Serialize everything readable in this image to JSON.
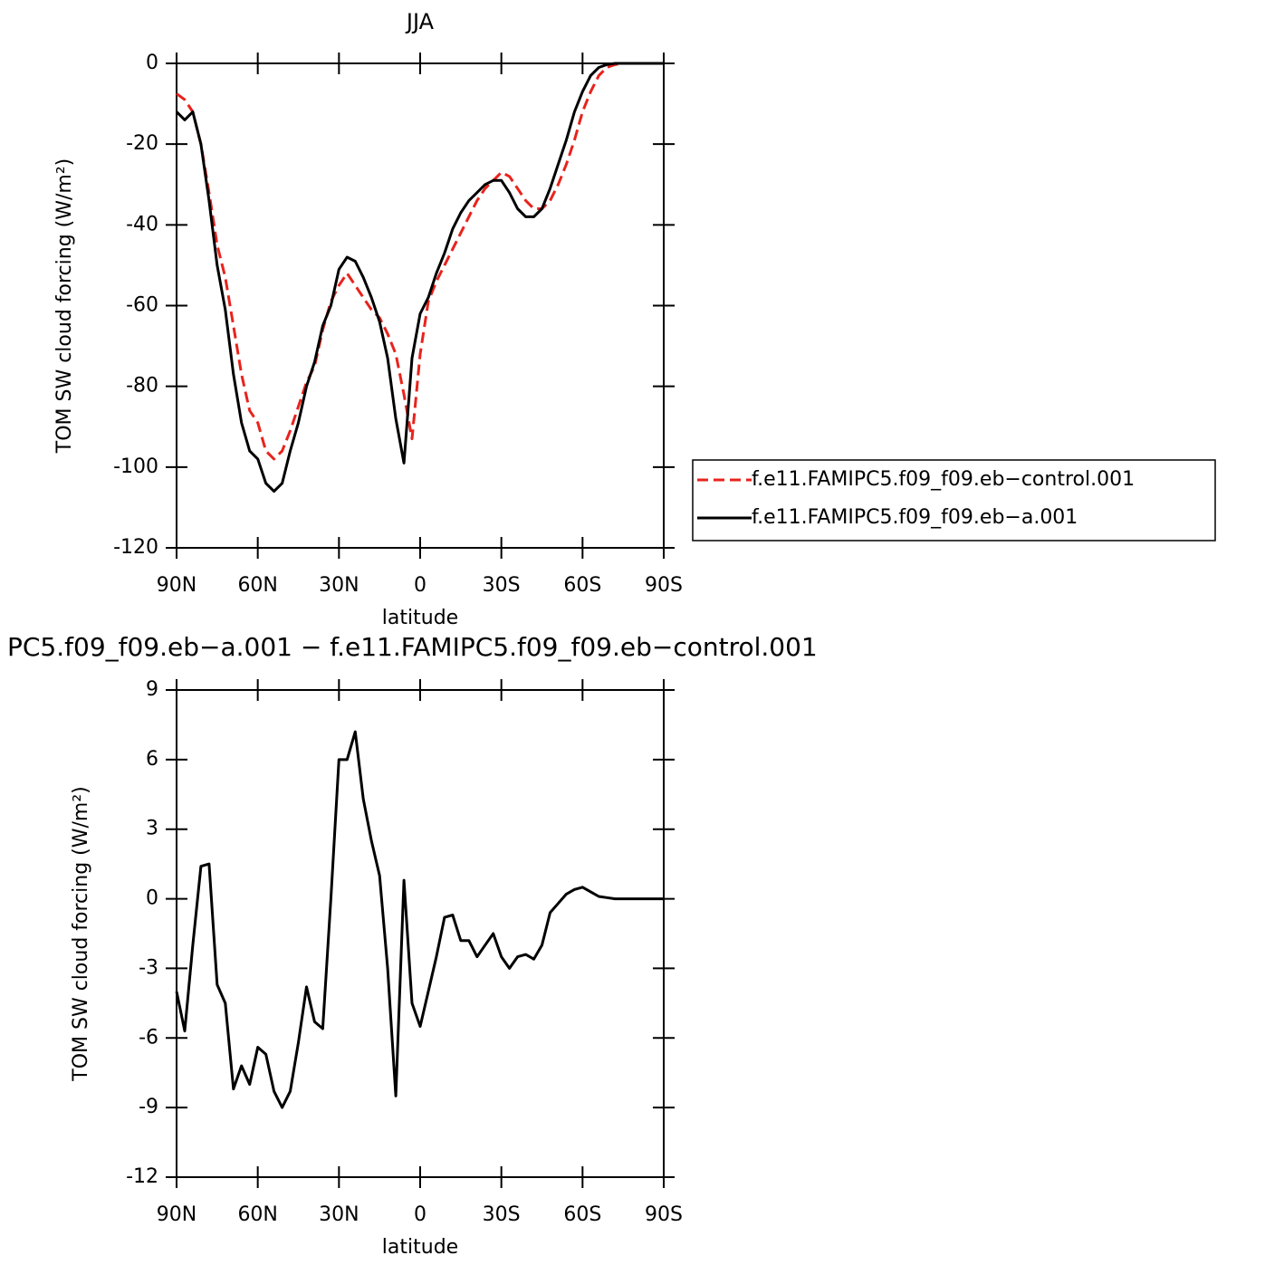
{
  "chart_data": [
    {
      "type": "line",
      "title": "JJA",
      "xlabel": "latitude",
      "ylabel": "TOM SW cloud forcing (W/m²)",
      "x": [
        90,
        87,
        84,
        81,
        78,
        75,
        72,
        69,
        66,
        63,
        60,
        57,
        54,
        51,
        48,
        45,
        42,
        39,
        36,
        33,
        30,
        27,
        24,
        21,
        18,
        15,
        12,
        9,
        6,
        3,
        0,
        -3,
        -6,
        -9,
        -12,
        -15,
        -18,
        -21,
        -24,
        -27,
        -30,
        -33,
        -36,
        -39,
        -42,
        -45,
        -48,
        -51,
        -54,
        -57,
        -60,
        -63,
        -66,
        -69,
        -72,
        -75,
        -78,
        -81,
        -84,
        -87,
        -90
      ],
      "series": [
        {
          "name": "f.e11.FAMIPC5.f09_f09.eb−control.001",
          "color": "#e8231c",
          "dash": true,
          "values": [
            -7.5,
            -9,
            -12,
            -20,
            -32,
            -45,
            -53,
            -65,
            -77,
            -86,
            -89,
            -96,
            -98,
            -96,
            -91,
            -85,
            -79,
            -75,
            -66,
            -59,
            -55,
            -52,
            -55,
            -58,
            -61,
            -63,
            -67,
            -72,
            -82,
            -93,
            -72,
            -59,
            -54,
            -50,
            -46,
            -42,
            -38,
            -34,
            -31,
            -29,
            -27,
            -28,
            -31,
            -34,
            -36,
            -36,
            -34,
            -30,
            -25,
            -19,
            -12,
            -7,
            -3,
            -1,
            -0.3,
            0,
            0,
            0,
            0,
            0,
            0
          ]
        },
        {
          "name": "f.e11.FAMIPC5.f09_f09.eb−a.001",
          "color": "#000000",
          "dash": false,
          "values": [
            -12,
            -14,
            -12,
            -20,
            -34,
            -50,
            -61,
            -77,
            -89,
            -96,
            -98,
            -104,
            -106,
            -104,
            -96,
            -89,
            -80,
            -74,
            -65,
            -60,
            -51,
            -48,
            -49,
            -53,
            -58,
            -64,
            -73,
            -88,
            -99,
            -73,
            -62,
            -58,
            -52,
            -47,
            -41,
            -37,
            -34,
            -32,
            -30,
            -29,
            -29,
            -32,
            -36,
            -38,
            -38,
            -36,
            -31,
            -25,
            -19,
            -12,
            -7,
            -3,
            -1,
            -0.3,
            0,
            0,
            0,
            0,
            0,
            0,
            0
          ]
        }
      ],
      "xlim": [
        90,
        -90
      ],
      "xticks": [
        {
          "value": 90,
          "label": "90N"
        },
        {
          "value": 60,
          "label": "60N"
        },
        {
          "value": 30,
          "label": "30N"
        },
        0,
        {
          "value": -30,
          "label": "30S"
        },
        {
          "value": -60,
          "label": "60S"
        },
        {
          "value": -90,
          "label": "90S"
        }
      ],
      "ylim": [
        0,
        -120
      ],
      "yticks": [
        0,
        -20,
        -40,
        -60,
        -80,
        -100,
        -120
      ],
      "legend": "right"
    },
    {
      "type": "line",
      "title": "PC5.f09_f09.eb−a.001 − f.e11.FAMIPC5.f09_f09.eb−control.001",
      "xlabel": "latitude",
      "ylabel": "TOM SW cloud forcing (W/m²)",
      "x": [
        90,
        87,
        84,
        81,
        78,
        75,
        72,
        69,
        66,
        63,
        60,
        57,
        54,
        51,
        48,
        45,
        42,
        39,
        36,
        33,
        30,
        27,
        24,
        21,
        18,
        15,
        12,
        9,
        6,
        3,
        0,
        -3,
        -6,
        -9,
        -12,
        -15,
        -18,
        -21,
        -24,
        -27,
        -30,
        -33,
        -36,
        -39,
        -42,
        -45,
        -48,
        -51,
        -54,
        -57,
        -60,
        -63,
        -66,
        -69,
        -72,
        -75,
        -78,
        -81,
        -84,
        -87,
        -90
      ],
      "color": "#000000",
      "values": [
        -4,
        -5.7,
        -2,
        1.4,
        1.5,
        -3.7,
        -4.5,
        -8.2,
        -7.2,
        -8,
        -6.4,
        -6.7,
        -8.3,
        -9,
        -8.3,
        -6.2,
        -3.8,
        -5.3,
        -5.6,
        0,
        6,
        6,
        7.2,
        4.3,
        2.5,
        1,
        -3,
        -8.5,
        0.8,
        -4.5,
        -5.5,
        -4,
        -2.5,
        -0.8,
        -0.7,
        -1.8,
        -1.8,
        -2.5,
        -2,
        -1.5,
        -2.5,
        -3,
        -2.5,
        -2.4,
        -2.6,
        -2,
        -0.6,
        -0.2,
        0.2,
        0.4,
        0.5,
        0.3,
        0.1,
        0.05,
        0,
        0,
        0,
        0,
        0,
        0,
        0
      ],
      "xlim": [
        90,
        -90
      ],
      "xticks": [
        {
          "value": 90,
          "label": "90N"
        },
        {
          "value": 60,
          "label": "60N"
        },
        {
          "value": 30,
          "label": "30N"
        },
        0,
        {
          "value": -30,
          "label": "30S"
        },
        {
          "value": -60,
          "label": "60S"
        },
        {
          "value": -90,
          "label": "90S"
        }
      ],
      "ylim": [
        9,
        -12
      ],
      "yticks": [
        9,
        6,
        3,
        0,
        -3,
        -6,
        -9,
        -12
      ]
    }
  ]
}
